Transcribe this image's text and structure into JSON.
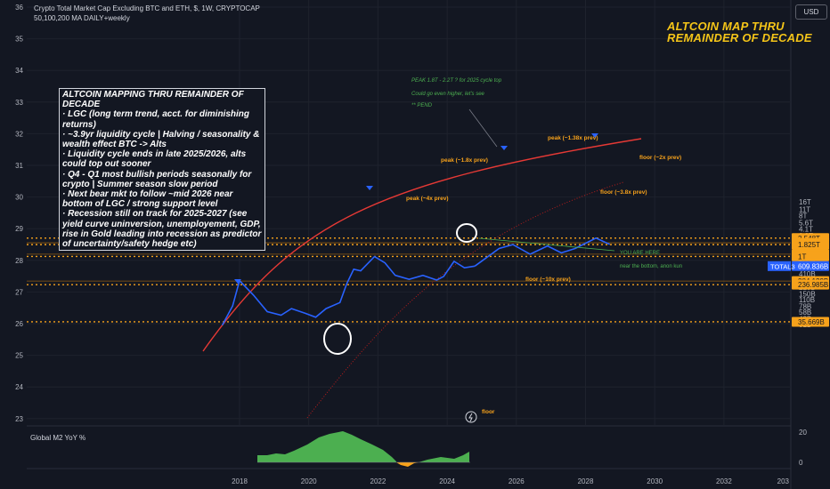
{
  "header": {
    "title": "Crypto Total Market Cap Excluding BTC and ETH, $, 1W, CRYPTOCAP",
    "subtitle": "50,100,200 MA DAILY+weekly"
  },
  "currency_button": "USD",
  "big_title": [
    "ALTCOIN MAP THRU",
    "REMAINDER OF DECADE"
  ],
  "note_box": [
    "ALTCOIN MAPPING THRU REMAINDER OF DECADE",
    "· LGC (long term trend, acct. for diminishing returns)",
    "· ~3.9yr liquidity cycle | Halving / seasonality & wealth effect BTC -> Alts",
    "· Liquidity cycle ends in late 2025/2026, alts could top out sooner",
    "· Q4 - Q1 most bullish periods seasonally for crypto | Summer season slow period",
    "· Next bear mkt to follow ~mid 2026 near bottom of LGC / strong support level",
    "· Recession still on track for 2025-2027 (see yield curve uninversion, unemployement, GDP, rise in Gold leading into recession as predictor of uncertainty/safety hedge etc)"
  ],
  "green_notes": [
    "PEAK 1.8T - 2.2T ? for 2025 cycle top",
    "Could go even higher, let's see",
    "** PEND"
  ],
  "you_are_here": [
    "YOU ARE HERE",
    "near the bottom, anon kun"
  ],
  "pane_label": "Global M2 YoY %",
  "colors": {
    "bg": "#131722",
    "line": "#2962ff",
    "orange": "#f7a21b",
    "red": "#e53935",
    "green": "#4caf50",
    "text": "#d1d4dc"
  },
  "chart_data": {
    "type": "line",
    "title": "Crypto Total Market Cap Excluding BTC and ETH, $, 1W, CRYPTOCAP",
    "left_axis_ticks": [
      36,
      35,
      34,
      33,
      32,
      31,
      30,
      29,
      28,
      27,
      26,
      25,
      24,
      23
    ],
    "x_ticks": [
      "2018",
      "2020",
      "2022",
      "2024",
      "2026",
      "2028",
      "2030",
      "2032",
      "203"
    ],
    "y_scale": "log",
    "right_axis_ticks": [
      "16T",
      "11T",
      "8T",
      "5.6T",
      "4.1T",
      "2.9T",
      "1.5T",
      "800B",
      "410B",
      "210B",
      "150B",
      "110B",
      "78B",
      "58B",
      "42B",
      "31B"
    ],
    "right_axis_badges": [
      {
        "label": "2.548T",
        "color": "#f7a21b"
      },
      {
        "label": "2.003T",
        "color": "#f7a21b"
      },
      {
        "label": "1.825T",
        "color": "#f7a21b"
      },
      {
        "label": "1.12T",
        "color": "#f7a21b"
      },
      {
        "label": "1T",
        "color": "#f7a21b"
      },
      {
        "label": "609.836B",
        "color": "#2962ff",
        "name": "TOTAL3"
      },
      {
        "label": "284.129B",
        "color": "#f7a21b"
      },
      {
        "label": "236.985B",
        "color": "#f7a21b"
      },
      {
        "label": "35.669B",
        "color": "#f7a21b"
      }
    ],
    "levels": [
      {
        "label": "peak (~1.38x prev)",
        "value": "2.548T",
        "color": "#f7a21b"
      },
      {
        "label": "peak (~1.8x prev)",
        "value": "1.825T",
        "color": "#f7a21b"
      },
      {
        "label": "floor (~2x prev)",
        "value": "2.003T",
        "color": "#f7a21b"
      },
      {
        "label": "peak (~4x prev)",
        "value": "1T",
        "color": "#f7a21b"
      },
      {
        "label": "floor (~3.8x prev)",
        "value": "1.12T",
        "color": "#f7a21b"
      },
      {
        "label": "floor (~10x prev)",
        "value": "284.129B",
        "color": "#f7a21b"
      },
      {
        "label": "floor",
        "value": "35.669B",
        "color": "#f7a21b"
      }
    ],
    "series": [
      {
        "name": "TOTAL3",
        "x": [
          2017.5,
          2017.8,
          2018.0,
          2018.4,
          2018.8,
          2019.2,
          2019.5,
          2019.9,
          2020.2,
          2020.5,
          2020.9,
          2021.1,
          2021.3,
          2021.5,
          2021.9,
          2022.2,
          2022.5,
          2022.9,
          2023.3,
          2023.7,
          2023.9,
          2024.2,
          2024.5,
          2024.8
        ],
        "values": [
          30,
          80,
          290,
          140,
          60,
          50,
          70,
          55,
          45,
          70,
          95,
          250,
          520,
          480,
          990,
          720,
          380,
          310,
          380,
          300,
          360,
          780,
          560,
          610
        ]
      },
      {
        "name": "projection",
        "x": [
          2024.8,
          2025.5,
          2025.9,
          2026.4,
          2026.9,
          2027.3,
          2027.7,
          2028.3,
          2028.7
        ],
        "values": [
          610,
          1500,
          1825,
          1120,
          1700,
          1200,
          1500,
          2548,
          1850
        ]
      }
    ],
    "pane": {
      "title": "Global M2 YoY %",
      "ticks": [
        "20",
        "0"
      ]
    }
  }
}
